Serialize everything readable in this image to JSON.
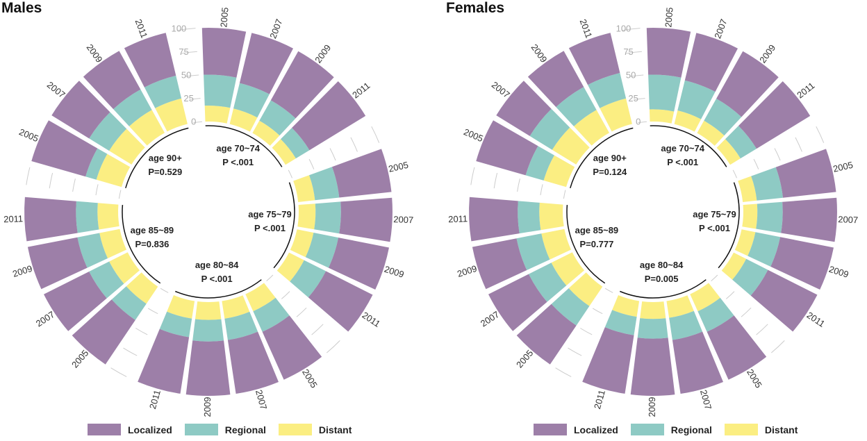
{
  "colors": {
    "localized": "#9d7fa8",
    "regional": "#8ecac4",
    "distant": "#fbee82",
    "guide": "#cccccc",
    "tick": "#aaaaaa"
  },
  "legend": {
    "localized": "Localized",
    "regional": "Regional",
    "distant": "Distant"
  },
  "chart_data": [
    {
      "type": "radial-stacked-bar",
      "title": "Males",
      "y_ticks": [
        "0",
        "25",
        "50",
        "75",
        "100"
      ],
      "series_names": [
        "Distant",
        "Regional",
        "Localized"
      ],
      "groups": [
        {
          "label": "age 70~74",
          "pvalue": "P <.001",
          "years": [
            "2005",
            "2007",
            "2009",
            "2011"
          ],
          "distant": [
            17,
            17,
            15,
            13
          ],
          "regional": [
            33,
            28,
            25,
            17
          ],
          "localized": [
            50,
            55,
            60,
            70
          ]
        },
        {
          "label": "age 75~79",
          "pvalue": "P <.001",
          "years": [
            "2005",
            "2007",
            "2009",
            "2011"
          ],
          "distant": [
            18,
            18,
            18,
            18
          ],
          "regional": [
            26,
            27,
            27,
            26
          ],
          "localized": [
            56,
            55,
            55,
            56
          ]
        },
        {
          "label": "age 80~84",
          "pvalue": "P <.001",
          "years": [
            "2005",
            "2007",
            "2009",
            "2011"
          ],
          "distant": [
            20,
            19,
            19,
            19
          ],
          "regional": [
            24,
            23,
            23,
            20
          ],
          "localized": [
            56,
            58,
            58,
            61
          ]
        },
        {
          "label": "age 85~89",
          "pvalue": "P=0.836",
          "years": [
            "2005",
            "2007",
            "2009",
            "2011"
          ],
          "distant": [
            22,
            22,
            22,
            22
          ],
          "regional": [
            21,
            24,
            24,
            23
          ],
          "localized": [
            57,
            54,
            54,
            55
          ]
        },
        {
          "label": "age 90+",
          "pvalue": "P=0.529",
          "years": [
            "2005",
            "2007",
            "2009",
            "2011"
          ],
          "distant": [
            28,
            28,
            28,
            28
          ],
          "regional": [
            12,
            25,
            25,
            25
          ],
          "localized": [
            60,
            47,
            47,
            47
          ]
        }
      ]
    },
    {
      "type": "radial-stacked-bar",
      "title": "Females",
      "y_ticks": [
        "0",
        "25",
        "50",
        "75",
        "100"
      ],
      "series_names": [
        "Distant",
        "Regional",
        "Localized"
      ],
      "groups": [
        {
          "label": "age 70~74",
          "pvalue": "P <.001",
          "years": [
            "2005",
            "2007",
            "2009",
            "2011"
          ],
          "distant": [
            13,
            15,
            15,
            13
          ],
          "regional": [
            37,
            33,
            27,
            20
          ],
          "localized": [
            50,
            52,
            58,
            67
          ]
        },
        {
          "label": "age 75~79",
          "pvalue": "P <.001",
          "years": [
            "2005",
            "2007",
            "2009",
            "2011"
          ],
          "distant": [
            15,
            15,
            15,
            15
          ],
          "regional": [
            28,
            27,
            27,
            26
          ],
          "localized": [
            57,
            58,
            58,
            59
          ]
        },
        {
          "label": "age 80~84",
          "pvalue": "P=0.005",
          "years": [
            "2005",
            "2007",
            "2009",
            "2011"
          ],
          "distant": [
            20,
            18,
            18,
            17
          ],
          "regional": [
            24,
            24,
            21,
            20
          ],
          "localized": [
            56,
            58,
            61,
            63
          ]
        },
        {
          "label": "age 85~89",
          "pvalue": "P=0.777",
          "years": [
            "2005",
            "2007",
            "2009",
            "2011"
          ],
          "distant": [
            25,
            25,
            25,
            25
          ],
          "regional": [
            25,
            27,
            27,
            23
          ],
          "localized": [
            50,
            48,
            48,
            52
          ]
        },
        {
          "label": "age 90+",
          "pvalue": "P=0.124",
          "years": [
            "2005",
            "2007",
            "2009",
            "2011"
          ],
          "distant": [
            25,
            30,
            28,
            28
          ],
          "regional": [
            20,
            28,
            28,
            28
          ],
          "localized": [
            55,
            42,
            44,
            44
          ]
        }
      ]
    }
  ]
}
